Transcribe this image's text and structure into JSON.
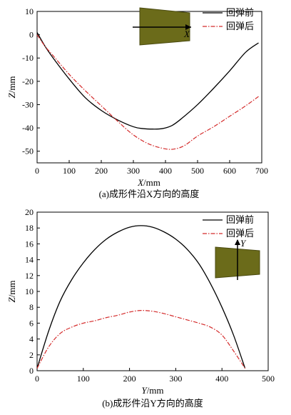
{
  "chart_data": [
    {
      "type": "line",
      "xlabel_italic": "X",
      "xlabel_unit": "/mm",
      "ylabel_italic": "Z",
      "ylabel_unit": "/mm",
      "caption": "(a)成形件沿X方向的高度",
      "xlim": [
        0,
        700
      ],
      "ylim": [
        -55,
        10
      ],
      "xticks": [
        0,
        100,
        200,
        300,
        400,
        500,
        600,
        700
      ],
      "yticks": [
        -50,
        -40,
        -30,
        -20,
        -10,
        0,
        10
      ],
      "legend_position": "top-right",
      "inset_axis_label": "X",
      "series": [
        {
          "name": "回弹前",
          "color": "#000000",
          "style": "solid",
          "x": [
            0,
            25,
            50,
            100,
            150,
            200,
            250,
            300,
            330,
            360,
            390,
            420,
            450,
            500,
            550,
            600,
            650,
            690
          ],
          "y": [
            1,
            -5,
            -10,
            -19,
            -27,
            -32.5,
            -36.5,
            -39.5,
            -40.3,
            -40.5,
            -40.3,
            -39,
            -36,
            -30,
            -23,
            -15.5,
            -7.5,
            -3.5
          ]
        },
        {
          "name": "回弹后",
          "color": "#d42b2b",
          "style": "dashdot",
          "x": [
            0,
            25,
            50,
            100,
            150,
            200,
            250,
            300,
            350,
            400,
            430,
            460,
            500,
            550,
            600,
            650,
            690
          ],
          "y": [
            0,
            -5,
            -9,
            -17,
            -24,
            -30.5,
            -37,
            -43,
            -47,
            -49,
            -49,
            -47.5,
            -43.5,
            -39.5,
            -35,
            -30.5,
            -26.5
          ]
        }
      ]
    },
    {
      "type": "line",
      "xlabel_italic": "Y",
      "xlabel_unit": "/mm",
      "ylabel_italic": "Z",
      "ylabel_unit": "/mm",
      "caption": "(b)成形件沿Y方向的高度",
      "xlim": [
        0,
        500
      ],
      "ylim": [
        0,
        20
      ],
      "xticks": [
        0,
        100,
        200,
        300,
        400,
        500
      ],
      "yticks": [
        0,
        2,
        4,
        6,
        8,
        10,
        12,
        14,
        16,
        18,
        20
      ],
      "legend_position": "top-right",
      "inset_axis_label": "Y",
      "series": [
        {
          "name": "回弹前",
          "color": "#000000",
          "style": "solid",
          "x": [
            0,
            25,
            50,
            75,
            100,
            125,
            150,
            175,
            200,
            225,
            250,
            275,
            300,
            325,
            350,
            375,
            400,
            425,
            450
          ],
          "y": [
            0.3,
            5,
            8.8,
            11.5,
            13.6,
            15.3,
            16.6,
            17.5,
            18.1,
            18.3,
            18.1,
            17.5,
            16.6,
            15.3,
            13.5,
            11,
            8,
            4.5,
            0.3
          ]
        },
        {
          "name": "回弹后",
          "color": "#d42b2b",
          "style": "dashdot",
          "x": [
            0,
            25,
            50,
            75,
            100,
            125,
            150,
            175,
            200,
            225,
            250,
            275,
            300,
            325,
            350,
            375,
            400,
            425,
            450
          ],
          "y": [
            0.3,
            3,
            4.7,
            5.5,
            6.0,
            6.3,
            6.7,
            7.0,
            7.4,
            7.6,
            7.5,
            7.2,
            6.8,
            6.4,
            6.0,
            5.5,
            4.5,
            2.5,
            0.3
          ]
        }
      ]
    }
  ]
}
